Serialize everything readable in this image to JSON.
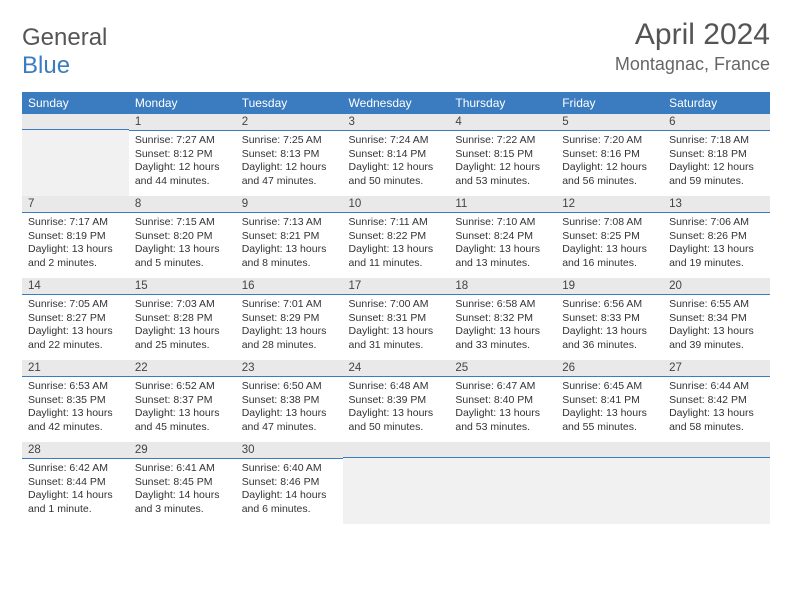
{
  "brand": {
    "part1": "General",
    "part2": "Blue"
  },
  "title": "April 2024",
  "location": "Montagnac, France",
  "colors": {
    "header_bg": "#3b7bbf",
    "header_text": "#ffffff",
    "daynum_bg": "#e9e9e9",
    "daynum_border": "#3b7bbf",
    "body_bg": "#ffffff",
    "empty_body_bg": "#f1f1f1",
    "text": "#333333",
    "title_color": "#555555"
  },
  "weekdays": [
    "Sunday",
    "Monday",
    "Tuesday",
    "Wednesday",
    "Thursday",
    "Friday",
    "Saturday"
  ],
  "weeks": [
    [
      null,
      {
        "n": "1",
        "sr": "Sunrise: 7:27 AM",
        "ss": "Sunset: 8:12 PM",
        "dl1": "Daylight: 12 hours",
        "dl2": "and 44 minutes."
      },
      {
        "n": "2",
        "sr": "Sunrise: 7:25 AM",
        "ss": "Sunset: 8:13 PM",
        "dl1": "Daylight: 12 hours",
        "dl2": "and 47 minutes."
      },
      {
        "n": "3",
        "sr": "Sunrise: 7:24 AM",
        "ss": "Sunset: 8:14 PM",
        "dl1": "Daylight: 12 hours",
        "dl2": "and 50 minutes."
      },
      {
        "n": "4",
        "sr": "Sunrise: 7:22 AM",
        "ss": "Sunset: 8:15 PM",
        "dl1": "Daylight: 12 hours",
        "dl2": "and 53 minutes."
      },
      {
        "n": "5",
        "sr": "Sunrise: 7:20 AM",
        "ss": "Sunset: 8:16 PM",
        "dl1": "Daylight: 12 hours",
        "dl2": "and 56 minutes."
      },
      {
        "n": "6",
        "sr": "Sunrise: 7:18 AM",
        "ss": "Sunset: 8:18 PM",
        "dl1": "Daylight: 12 hours",
        "dl2": "and 59 minutes."
      }
    ],
    [
      {
        "n": "7",
        "sr": "Sunrise: 7:17 AM",
        "ss": "Sunset: 8:19 PM",
        "dl1": "Daylight: 13 hours",
        "dl2": "and 2 minutes."
      },
      {
        "n": "8",
        "sr": "Sunrise: 7:15 AM",
        "ss": "Sunset: 8:20 PM",
        "dl1": "Daylight: 13 hours",
        "dl2": "and 5 minutes."
      },
      {
        "n": "9",
        "sr": "Sunrise: 7:13 AM",
        "ss": "Sunset: 8:21 PM",
        "dl1": "Daylight: 13 hours",
        "dl2": "and 8 minutes."
      },
      {
        "n": "10",
        "sr": "Sunrise: 7:11 AM",
        "ss": "Sunset: 8:22 PM",
        "dl1": "Daylight: 13 hours",
        "dl2": "and 11 minutes."
      },
      {
        "n": "11",
        "sr": "Sunrise: 7:10 AM",
        "ss": "Sunset: 8:24 PM",
        "dl1": "Daylight: 13 hours",
        "dl2": "and 13 minutes."
      },
      {
        "n": "12",
        "sr": "Sunrise: 7:08 AM",
        "ss": "Sunset: 8:25 PM",
        "dl1": "Daylight: 13 hours",
        "dl2": "and 16 minutes."
      },
      {
        "n": "13",
        "sr": "Sunrise: 7:06 AM",
        "ss": "Sunset: 8:26 PM",
        "dl1": "Daylight: 13 hours",
        "dl2": "and 19 minutes."
      }
    ],
    [
      {
        "n": "14",
        "sr": "Sunrise: 7:05 AM",
        "ss": "Sunset: 8:27 PM",
        "dl1": "Daylight: 13 hours",
        "dl2": "and 22 minutes."
      },
      {
        "n": "15",
        "sr": "Sunrise: 7:03 AM",
        "ss": "Sunset: 8:28 PM",
        "dl1": "Daylight: 13 hours",
        "dl2": "and 25 minutes."
      },
      {
        "n": "16",
        "sr": "Sunrise: 7:01 AM",
        "ss": "Sunset: 8:29 PM",
        "dl1": "Daylight: 13 hours",
        "dl2": "and 28 minutes."
      },
      {
        "n": "17",
        "sr": "Sunrise: 7:00 AM",
        "ss": "Sunset: 8:31 PM",
        "dl1": "Daylight: 13 hours",
        "dl2": "and 31 minutes."
      },
      {
        "n": "18",
        "sr": "Sunrise: 6:58 AM",
        "ss": "Sunset: 8:32 PM",
        "dl1": "Daylight: 13 hours",
        "dl2": "and 33 minutes."
      },
      {
        "n": "19",
        "sr": "Sunrise: 6:56 AM",
        "ss": "Sunset: 8:33 PM",
        "dl1": "Daylight: 13 hours",
        "dl2": "and 36 minutes."
      },
      {
        "n": "20",
        "sr": "Sunrise: 6:55 AM",
        "ss": "Sunset: 8:34 PM",
        "dl1": "Daylight: 13 hours",
        "dl2": "and 39 minutes."
      }
    ],
    [
      {
        "n": "21",
        "sr": "Sunrise: 6:53 AM",
        "ss": "Sunset: 8:35 PM",
        "dl1": "Daylight: 13 hours",
        "dl2": "and 42 minutes."
      },
      {
        "n": "22",
        "sr": "Sunrise: 6:52 AM",
        "ss": "Sunset: 8:37 PM",
        "dl1": "Daylight: 13 hours",
        "dl2": "and 45 minutes."
      },
      {
        "n": "23",
        "sr": "Sunrise: 6:50 AM",
        "ss": "Sunset: 8:38 PM",
        "dl1": "Daylight: 13 hours",
        "dl2": "and 47 minutes."
      },
      {
        "n": "24",
        "sr": "Sunrise: 6:48 AM",
        "ss": "Sunset: 8:39 PM",
        "dl1": "Daylight: 13 hours",
        "dl2": "and 50 minutes."
      },
      {
        "n": "25",
        "sr": "Sunrise: 6:47 AM",
        "ss": "Sunset: 8:40 PM",
        "dl1": "Daylight: 13 hours",
        "dl2": "and 53 minutes."
      },
      {
        "n": "26",
        "sr": "Sunrise: 6:45 AM",
        "ss": "Sunset: 8:41 PM",
        "dl1": "Daylight: 13 hours",
        "dl2": "and 55 minutes."
      },
      {
        "n": "27",
        "sr": "Sunrise: 6:44 AM",
        "ss": "Sunset: 8:42 PM",
        "dl1": "Daylight: 13 hours",
        "dl2": "and 58 minutes."
      }
    ],
    [
      {
        "n": "28",
        "sr": "Sunrise: 6:42 AM",
        "ss": "Sunset: 8:44 PM",
        "dl1": "Daylight: 14 hours",
        "dl2": "and 1 minute."
      },
      {
        "n": "29",
        "sr": "Sunrise: 6:41 AM",
        "ss": "Sunset: 8:45 PM",
        "dl1": "Daylight: 14 hours",
        "dl2": "and 3 minutes."
      },
      {
        "n": "30",
        "sr": "Sunrise: 6:40 AM",
        "ss": "Sunset: 8:46 PM",
        "dl1": "Daylight: 14 hours",
        "dl2": "and 6 minutes."
      },
      null,
      null,
      null,
      null
    ]
  ]
}
